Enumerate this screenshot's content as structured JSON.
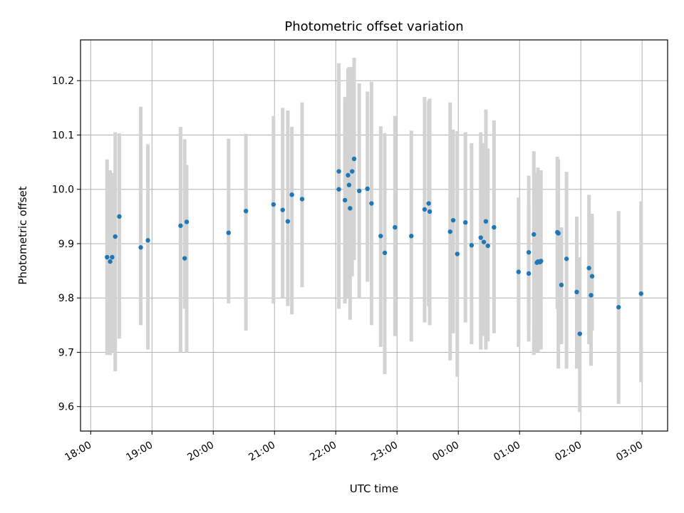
{
  "chart_data": {
    "type": "scatter",
    "title": "Photometric offset variation",
    "xlabel": "UTC time",
    "ylabel": "Photometric offset",
    "x_unit": "UTC time of night (starting 18:00)",
    "x_ticks": [
      "18:00",
      "19:00",
      "20:00",
      "21:00",
      "22:00",
      "23:00",
      "00:00",
      "01:00",
      "02:00",
      "03:00"
    ],
    "y_ticks": [
      "9.6",
      "9.7",
      "9.8",
      "9.9",
      "10.0",
      "10.1",
      "10.2"
    ],
    "y_tick_values": [
      9.6,
      9.7,
      9.8,
      9.9,
      10.0,
      10.1,
      10.2
    ],
    "xlim": [
      "17:50",
      "03:25"
    ],
    "ylim": [
      9.555,
      10.275
    ],
    "grid": true,
    "series": [
      {
        "marker_color": "#1f77b4",
        "errorbar_color": "#d3d3d3",
        "x": [
          "18:16",
          "18:19",
          "18:21",
          "18:24",
          "18:28",
          "18:49",
          "18:56",
          "19:28",
          "19:32",
          "19:34",
          "20:15",
          "20:32",
          "20:59",
          "21:08",
          "21:13",
          "21:17",
          "21:27",
          "22:03",
          "22:03",
          "22:09",
          "22:12",
          "22:13",
          "22:14",
          "22:16",
          "22:18",
          "22:23",
          "22:31",
          "22:35",
          "22:44",
          "22:48",
          "22:58",
          "23:14",
          "23:27",
          "23:31",
          "23:32",
          "23:52",
          "23:55",
          "23:59",
          "24:07",
          "24:13",
          "24:22",
          "24:25",
          "24:27",
          "24:29",
          "24:35",
          "24:59",
          "25:09",
          "25:09",
          "25:14",
          "25:17",
          "25:18",
          "25:20",
          "25:21",
          "25:37",
          "25:38",
          "25:41",
          "25:46",
          "25:56",
          "25:59",
          "26:08",
          "26:10",
          "26:11",
          "26:37",
          "26:59"
        ],
        "y": [
          9.875,
          9.867,
          9.875,
          9.913,
          9.95,
          9.893,
          9.906,
          9.933,
          9.873,
          9.94,
          9.92,
          9.96,
          9.972,
          9.962,
          9.941,
          9.99,
          9.982,
          10.033,
          10.0,
          9.98,
          10.026,
          10.008,
          9.965,
          10.033,
          10.056,
          9.997,
          10.001,
          9.974,
          9.914,
          9.883,
          9.93,
          9.914,
          9.963,
          9.974,
          9.959,
          9.922,
          9.943,
          9.881,
          9.939,
          9.897,
          9.911,
          9.903,
          9.941,
          9.896,
          9.93,
          9.848,
          9.845,
          9.884,
          9.917,
          9.865,
          9.867,
          9.866,
          9.868,
          9.921,
          9.919,
          9.824,
          9.872,
          9.811,
          9.734,
          9.855,
          9.805,
          9.84,
          9.783,
          9.808
        ],
        "yerr_low": [
          9.695,
          9.695,
          9.7,
          9.665,
          9.725,
          9.75,
          9.705,
          9.7,
          9.78,
          9.7,
          9.79,
          9.74,
          9.79,
          9.8,
          9.785,
          9.77,
          9.82,
          9.78,
          9.785,
          9.79,
          9.8,
          9.81,
          9.76,
          9.84,
          9.87,
          9.8,
          9.83,
          9.75,
          9.71,
          9.66,
          9.73,
          9.72,
          9.755,
          9.785,
          9.75,
          9.685,
          9.735,
          9.655,
          9.755,
          9.715,
          9.705,
          9.73,
          9.705,
          9.72,
          9.735,
          9.71,
          9.72,
          9.745,
          9.695,
          9.7,
          9.7,
          9.735,
          9.705,
          9.78,
          9.67,
          9.715,
          9.67,
          9.67,
          9.59,
          9.715,
          9.675,
          9.74,
          9.605,
          9.645
        ],
        "yerr_high": [
          10.055,
          10.035,
          10.03,
          10.105,
          10.103,
          10.152,
          10.083,
          10.115,
          10.092,
          10.045,
          10.093,
          10.102,
          10.135,
          10.15,
          10.145,
          10.115,
          10.16,
          10.232,
          10.22,
          10.17,
          10.222,
          10.225,
          10.17,
          10.225,
          10.242,
          10.195,
          10.18,
          10.198,
          10.116,
          10.103,
          10.135,
          10.108,
          10.17,
          10.163,
          10.167,
          10.16,
          10.11,
          10.107,
          10.105,
          10.085,
          10.105,
          10.085,
          10.147,
          10.075,
          10.127,
          9.985,
          9.97,
          10.025,
          10.07,
          10.03,
          10.04,
          10.035,
          10.035,
          10.06,
          10.055,
          9.93,
          10.032,
          9.95,
          9.875,
          9.99,
          9.94,
          9.955,
          9.96,
          9.978
        ]
      }
    ]
  }
}
